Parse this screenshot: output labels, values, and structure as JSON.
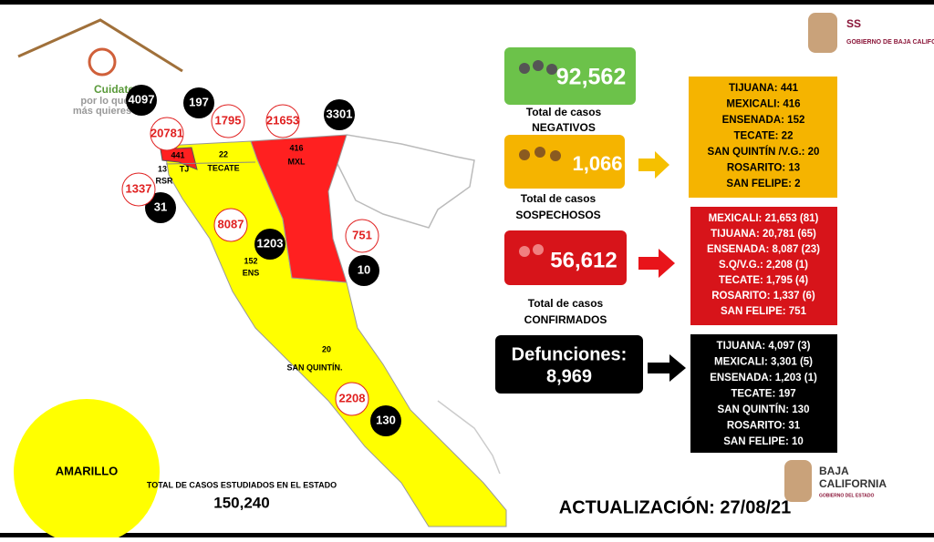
{
  "logo": {
    "lines": [
      "Cuidate",
      "por lo que",
      "más quieres"
    ]
  },
  "header": {
    "title": "SS",
    "subtitle": "GOBIERNO DE BAJA CALIFORNIA"
  },
  "map": {
    "death_circles": [
      "4097",
      "197",
      "3301",
      "31",
      "1203",
      "10",
      "130"
    ],
    "confirmed_circles": [
      "20781",
      "1795",
      "21653",
      "1337",
      "8087",
      "751",
      "2208"
    ],
    "regions": [
      {
        "count": "441",
        "name": "TJ"
      },
      {
        "count": "13",
        "name": "RSR"
      },
      {
        "count": "22",
        "name": "TECATE"
      },
      {
        "count": "416",
        "name": "MXL"
      },
      {
        "count": "152",
        "name": "ENS"
      },
      {
        "count": "20",
        "name": "SAN QUINTÍN."
      }
    ]
  },
  "summary": {
    "negativos": {
      "value": "92,562",
      "caption": [
        "Total de casos",
        "NEGATIVOS"
      ]
    },
    "sospechosos": {
      "value": "1,066",
      "caption": [
        "Total de casos",
        "SOSPECHOSOS"
      ]
    },
    "confirmados": {
      "value": "56,612",
      "caption": [
        "Total de casos",
        "CONFIRMADOS"
      ]
    },
    "defunciones": {
      "label": "Defunciones:",
      "value": "8,969"
    }
  },
  "lists": {
    "sospechosos": [
      "TIJUANA: 441",
      "MEXICALI: 416",
      "ENSENADA: 152",
      "TECATE: 22",
      "SAN QUINTÍN /V.G.: 20",
      "ROSARITO: 13",
      "SAN FELIPE: 2"
    ],
    "confirmados": [
      "MEXICALI: 21,653 (81)",
      "TIJUANA: 20,781 (65)",
      "ENSENADA: 8,087 (23)",
      "S.Q/V.G.: 2,208 (1)",
      "TECATE: 1,795 (4)",
      "ROSARITO: 1,337 (6)",
      "SAN FELIPE: 751"
    ],
    "defunciones": [
      "TIJUANA: 4,097 (3)",
      "MEXICALI: 3,301 (5)",
      "ENSENADA: 1,203 (1)",
      "TECATE: 197",
      "SAN QUINTÍN: 130",
      "ROSARITO: 31",
      "SAN FELIPE: 10"
    ]
  },
  "status": "AMARILLO",
  "total": {
    "label": "TOTAL DE CASOS ESTUDIADOS EN EL ESTADO",
    "value": "150,240"
  },
  "update": "ACTUALIZACIÓN: 27/08/21",
  "footer_logo": [
    "BAJA",
    "CALIFORNIA",
    "GOBIERNO DEL ESTADO"
  ]
}
